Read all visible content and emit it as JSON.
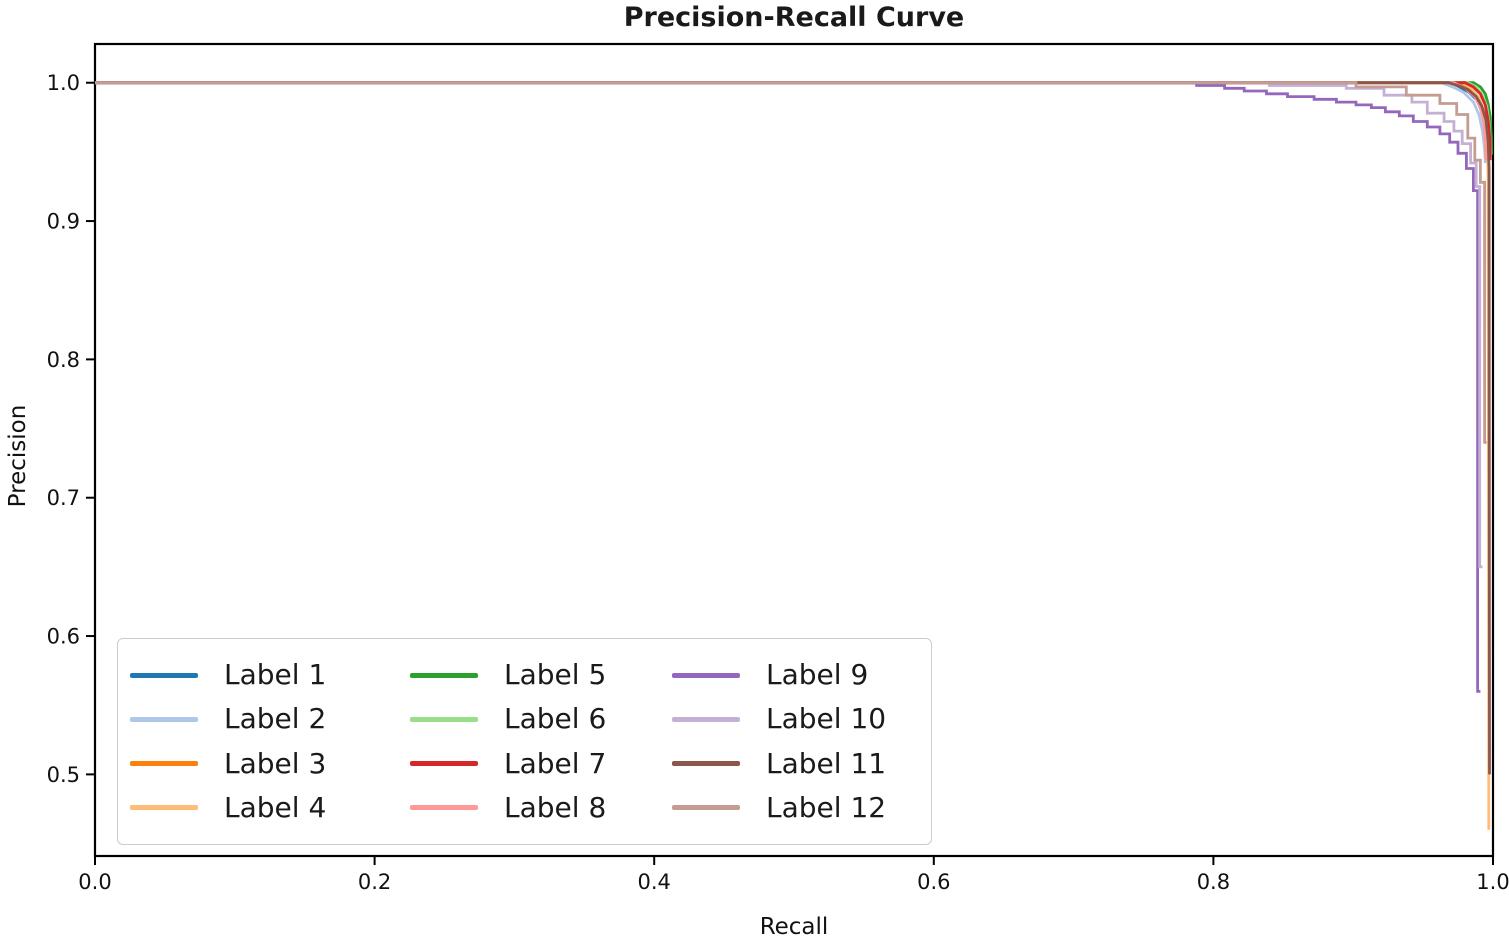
{
  "figure": {
    "title": "Precision-Recall Curve",
    "xlabel": "Recall",
    "ylabel": "Precision"
  },
  "chart_data": {
    "type": "line",
    "title": "Precision-Recall Curve",
    "xlabel": "Recall",
    "ylabel": "Precision",
    "grid": false,
    "legend_position": "lower-left",
    "legend_columns": 3,
    "xlim": [
      0.0,
      1.0
    ],
    "ylim": [
      0.441,
      1.028
    ],
    "x_ticks": [
      0.0,
      0.2,
      0.4,
      0.6,
      0.8,
      1.0
    ],
    "x_tick_labels": [
      "0.0",
      "0.2",
      "0.4",
      "0.6",
      "0.8",
      "1.0"
    ],
    "y_ticks": [
      1.0,
      0.9,
      0.8,
      0.7,
      0.6,
      0.5
    ],
    "y_tick_labels": [
      "1.0",
      "0.9",
      "0.8",
      "0.7",
      "0.6",
      "0.5"
    ],
    "series": [
      {
        "name": "Label 1",
        "color": "#1f77b4",
        "points": [
          [
            0,
            1
          ],
          [
            0.97,
            1
          ],
          [
            0.976,
            0.997
          ],
          [
            0.983,
            0.993
          ],
          [
            0.989,
            0.987
          ],
          [
            0.992,
            0.979
          ],
          [
            0.994,
            0.968
          ],
          [
            0.995,
            0.955
          ],
          [
            0.9955,
            0.945
          ]
        ]
      },
      {
        "name": "Label 2",
        "color": "#aec7e8",
        "points": [
          [
            0,
            1
          ],
          [
            0.963,
            1
          ],
          [
            0.971,
            0.997
          ],
          [
            0.979,
            0.993
          ],
          [
            0.986,
            0.986
          ],
          [
            0.99,
            0.977
          ],
          [
            0.9925,
            0.965
          ],
          [
            0.994,
            0.952
          ],
          [
            0.9945,
            0.942
          ]
        ]
      },
      {
        "name": "Label 3",
        "color": "#ff7f0e",
        "points": [
          [
            0,
            1
          ],
          [
            0.975,
            1
          ],
          [
            0.982,
            0.996
          ],
          [
            0.988,
            0.99
          ],
          [
            0.992,
            0.982
          ],
          [
            0.9945,
            0.971
          ],
          [
            0.996,
            0.957
          ],
          [
            0.9965,
            0.938
          ],
          [
            0.997,
            0.928
          ]
        ]
      },
      {
        "name": "Label 4",
        "color": "#ffbb78",
        "points": [
          [
            0,
            1
          ],
          [
            0.978,
            1
          ],
          [
            0.985,
            0.996
          ],
          [
            0.99,
            0.989
          ],
          [
            0.9935,
            0.98
          ],
          [
            0.9955,
            0.967
          ],
          [
            0.9965,
            0.95
          ],
          [
            0.997,
            0.46
          ]
        ]
      },
      {
        "name": "Label 5",
        "color": "#2ca02c",
        "points": [
          [
            0,
            1
          ],
          [
            0.986,
            1
          ],
          [
            0.991,
            0.997
          ],
          [
            0.9945,
            0.992
          ],
          [
            0.9965,
            0.985
          ],
          [
            0.998,
            0.975
          ],
          [
            0.9988,
            0.962
          ],
          [
            0.999,
            0.948
          ]
        ]
      },
      {
        "name": "Label 6",
        "color": "#98df8a",
        "points": [
          [
            0,
            1
          ],
          [
            0.982,
            1
          ],
          [
            0.988,
            0.997
          ],
          [
            0.9925,
            0.991
          ],
          [
            0.9955,
            0.983
          ],
          [
            0.9972,
            0.971
          ],
          [
            0.998,
            0.957
          ],
          [
            0.9982,
            0.946
          ]
        ]
      },
      {
        "name": "Label 7",
        "color": "#d62728",
        "points": [
          [
            0,
            1
          ],
          [
            0.98,
            1
          ],
          [
            0.986,
            0.997
          ],
          [
            0.991,
            0.992
          ],
          [
            0.9945,
            0.984
          ],
          [
            0.9965,
            0.973
          ],
          [
            0.9978,
            0.959
          ],
          [
            0.998,
            0.944
          ]
        ]
      },
      {
        "name": "Label 8",
        "color": "#ff9896",
        "points": [
          [
            0,
            1
          ],
          [
            0.972,
            1
          ],
          [
            0.98,
            0.996
          ],
          [
            0.987,
            0.99
          ],
          [
            0.991,
            0.982
          ],
          [
            0.9935,
            0.971
          ],
          [
            0.9945,
            0.957
          ],
          [
            0.995,
            0.944
          ]
        ]
      },
      {
        "name": "Label 9",
        "color": "#9467bd",
        "points": [
          [
            0,
            1
          ],
          [
            0.788,
            1
          ],
          [
            0.788,
            0.998
          ],
          [
            0.808,
            0.998
          ],
          [
            0.808,
            0.996
          ],
          [
            0.822,
            0.996
          ],
          [
            0.822,
            0.994
          ],
          [
            0.838,
            0.994
          ],
          [
            0.838,
            0.992
          ],
          [
            0.853,
            0.992
          ],
          [
            0.853,
            0.99
          ],
          [
            0.872,
            0.99
          ],
          [
            0.872,
            0.988
          ],
          [
            0.888,
            0.988
          ],
          [
            0.888,
            0.986
          ],
          [
            0.902,
            0.986
          ],
          [
            0.902,
            0.984
          ],
          [
            0.913,
            0.984
          ],
          [
            0.913,
            0.982
          ],
          [
            0.923,
            0.982
          ],
          [
            0.923,
            0.979
          ],
          [
            0.933,
            0.979
          ],
          [
            0.933,
            0.976
          ],
          [
            0.943,
            0.976
          ],
          [
            0.943,
            0.972
          ],
          [
            0.953,
            0.972
          ],
          [
            0.953,
            0.968
          ],
          [
            0.962,
            0.968
          ],
          [
            0.962,
            0.963
          ],
          [
            0.969,
            0.963
          ],
          [
            0.969,
            0.957
          ],
          [
            0.975,
            0.957
          ],
          [
            0.975,
            0.949
          ],
          [
            0.981,
            0.949
          ],
          [
            0.981,
            0.938
          ],
          [
            0.986,
            0.938
          ],
          [
            0.986,
            0.922
          ],
          [
            0.989,
            0.922
          ],
          [
            0.989,
            0.56
          ],
          [
            0.991,
            0.56
          ]
        ]
      },
      {
        "name": "Label 10",
        "color": "#c5b0d5",
        "points": [
          [
            0,
            1
          ],
          [
            0.84,
            1
          ],
          [
            0.84,
            0.998
          ],
          [
            0.895,
            0.998
          ],
          [
            0.895,
            0.996
          ],
          [
            0.922,
            0.996
          ],
          [
            0.922,
            0.991
          ],
          [
            0.942,
            0.991
          ],
          [
            0.942,
            0.986
          ],
          [
            0.953,
            0.986
          ],
          [
            0.953,
            0.978
          ],
          [
            0.965,
            0.978
          ],
          [
            0.965,
            0.972
          ],
          [
            0.972,
            0.972
          ],
          [
            0.972,
            0.965
          ],
          [
            0.978,
            0.965
          ],
          [
            0.978,
            0.956
          ],
          [
            0.984,
            0.956
          ],
          [
            0.984,
            0.942
          ],
          [
            0.988,
            0.942
          ],
          [
            0.988,
            0.925
          ],
          [
            0.9905,
            0.925
          ],
          [
            0.9905,
            0.65
          ],
          [
            0.9925,
            0.65
          ]
        ]
      },
      {
        "name": "Label 11",
        "color": "#8c564b",
        "points": [
          [
            0,
            1
          ],
          [
            0.968,
            1
          ],
          [
            0.975,
            0.998
          ],
          [
            0.982,
            0.995
          ],
          [
            0.988,
            0.99
          ],
          [
            0.992,
            0.983
          ],
          [
            0.995,
            0.973
          ],
          [
            0.9965,
            0.958
          ],
          [
            0.9972,
            0.938
          ],
          [
            0.9975,
            0.5
          ]
        ]
      },
      {
        "name": "Label 12",
        "color": "#c49c94",
        "points": [
          [
            0,
            1
          ],
          [
            0.902,
            1
          ],
          [
            0.902,
            0.997
          ],
          [
            0.938,
            0.997
          ],
          [
            0.938,
            0.991
          ],
          [
            0.962,
            0.991
          ],
          [
            0.962,
            0.985
          ],
          [
            0.974,
            0.985
          ],
          [
            0.974,
            0.977
          ],
          [
            0.982,
            0.977
          ],
          [
            0.982,
            0.96
          ],
          [
            0.987,
            0.96
          ],
          [
            0.987,
            0.944
          ],
          [
            0.991,
            0.944
          ],
          [
            0.991,
            0.928
          ],
          [
            0.994,
            0.928
          ],
          [
            0.994,
            0.74
          ],
          [
            0.9955,
            0.74
          ]
        ]
      }
    ]
  }
}
